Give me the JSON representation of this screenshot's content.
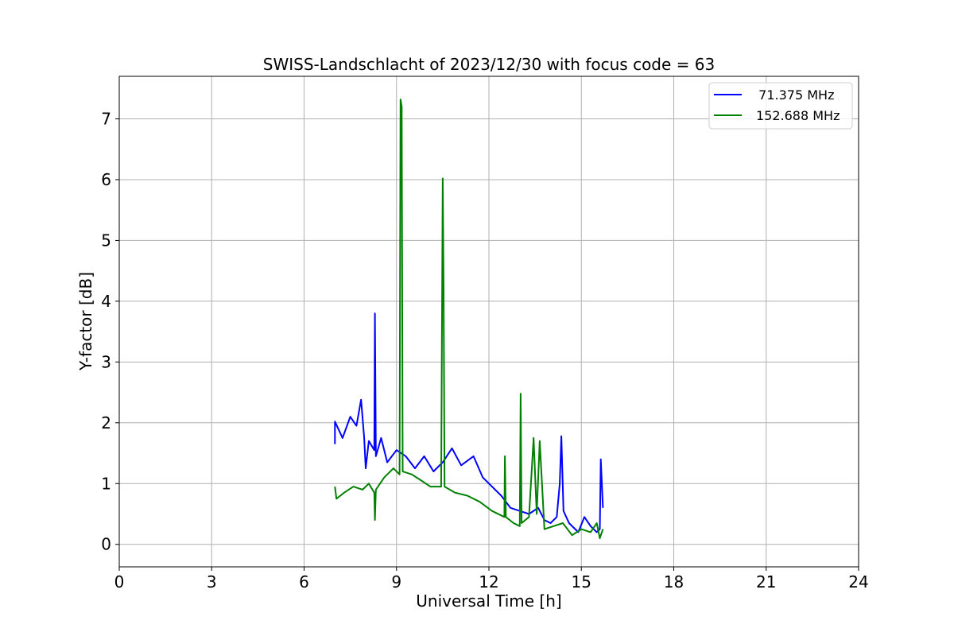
{
  "chart_data": {
    "type": "line",
    "title": "SWISS-Landschlacht of 2023/12/30 with focus code = 63",
    "xlabel": "Universal Time [h]",
    "ylabel": "Y-factor [dB]",
    "xlim": [
      0,
      24
    ],
    "ylim": [
      -0.37,
      7.7
    ],
    "xticks": [
      0,
      3,
      6,
      9,
      12,
      15,
      18,
      21,
      24
    ],
    "yticks": [
      0,
      1,
      2,
      3,
      4,
      5,
      6,
      7
    ],
    "grid": true,
    "legend_position": "top-right",
    "series": [
      {
        "name": "  71.375 MHz",
        "color": "#0000ff",
        "points": [
          [
            7.0,
            1.65
          ],
          [
            7.0,
            2.02
          ],
          [
            7.25,
            1.75
          ],
          [
            7.5,
            2.1
          ],
          [
            7.7,
            1.95
          ],
          [
            7.85,
            2.38
          ],
          [
            7.95,
            1.75
          ],
          [
            8.0,
            1.25
          ],
          [
            8.1,
            1.7
          ],
          [
            8.28,
            1.55
          ],
          [
            8.3,
            3.8
          ],
          [
            8.33,
            1.45
          ],
          [
            8.5,
            1.75
          ],
          [
            8.7,
            1.35
          ],
          [
            9.0,
            1.55
          ],
          [
            9.3,
            1.45
          ],
          [
            9.6,
            1.25
          ],
          [
            9.9,
            1.45
          ],
          [
            10.2,
            1.2
          ],
          [
            10.5,
            1.35
          ],
          [
            10.8,
            1.58
          ],
          [
            11.1,
            1.3
          ],
          [
            11.5,
            1.45
          ],
          [
            11.8,
            1.1
          ],
          [
            12.1,
            0.95
          ],
          [
            12.4,
            0.8
          ],
          [
            12.7,
            0.6
          ],
          [
            13.0,
            0.55
          ],
          [
            13.3,
            0.5
          ],
          [
            13.6,
            0.6
          ],
          [
            13.8,
            0.4
          ],
          [
            14.0,
            0.35
          ],
          [
            14.2,
            0.45
          ],
          [
            14.3,
            1.0
          ],
          [
            14.35,
            1.78
          ],
          [
            14.42,
            0.55
          ],
          [
            14.6,
            0.35
          ],
          [
            14.9,
            0.2
          ],
          [
            15.1,
            0.45
          ],
          [
            15.3,
            0.3
          ],
          [
            15.5,
            0.2
          ],
          [
            15.6,
            0.25
          ],
          [
            15.63,
            1.4
          ],
          [
            15.7,
            0.6
          ]
        ]
      },
      {
        "name": "152.688 MHz",
        "color": "#008000",
        "points": [
          [
            7.0,
            0.95
          ],
          [
            7.05,
            0.75
          ],
          [
            7.3,
            0.85
          ],
          [
            7.6,
            0.95
          ],
          [
            7.9,
            0.9
          ],
          [
            8.1,
            1.0
          ],
          [
            8.28,
            0.85
          ],
          [
            8.3,
            0.4
          ],
          [
            8.33,
            0.9
          ],
          [
            8.6,
            1.1
          ],
          [
            8.9,
            1.25
          ],
          [
            9.1,
            1.15
          ],
          [
            9.13,
            7.32
          ],
          [
            9.17,
            7.2
          ],
          [
            9.2,
            1.2
          ],
          [
            9.5,
            1.15
          ],
          [
            9.8,
            1.05
          ],
          [
            10.1,
            0.95
          ],
          [
            10.45,
            0.95
          ],
          [
            10.5,
            6.02
          ],
          [
            10.53,
            4.2
          ],
          [
            10.56,
            0.95
          ],
          [
            10.9,
            0.85
          ],
          [
            11.3,
            0.8
          ],
          [
            11.7,
            0.7
          ],
          [
            12.1,
            0.55
          ],
          [
            12.5,
            0.45
          ],
          [
            12.52,
            1.45
          ],
          [
            12.55,
            0.45
          ],
          [
            12.8,
            0.35
          ],
          [
            13.0,
            0.3
          ],
          [
            13.03,
            2.48
          ],
          [
            13.06,
            0.35
          ],
          [
            13.3,
            0.45
          ],
          [
            13.45,
            1.75
          ],
          [
            13.55,
            0.5
          ],
          [
            13.65,
            1.7
          ],
          [
            13.8,
            0.25
          ],
          [
            14.1,
            0.3
          ],
          [
            14.4,
            0.35
          ],
          [
            14.7,
            0.15
          ],
          [
            15.0,
            0.25
          ],
          [
            15.3,
            0.2
          ],
          [
            15.5,
            0.35
          ],
          [
            15.6,
            0.1
          ],
          [
            15.7,
            0.25
          ]
        ]
      }
    ]
  }
}
